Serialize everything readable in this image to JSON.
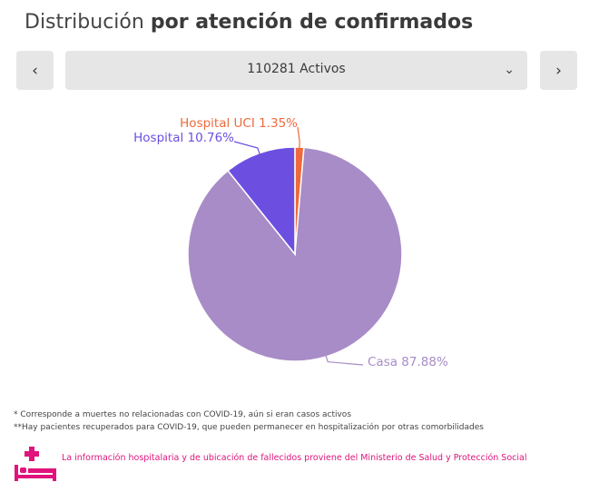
{
  "title": {
    "normal": "Distribución",
    "bold": "por atención de confirmados"
  },
  "nav": {
    "prev_icon": "chevron-left-icon",
    "next_icon": "chevron-right-icon",
    "prev_glyph": "‹",
    "next_glyph": "›",
    "selected": "110281 Activos",
    "dropdown_glyph": "⌄"
  },
  "chart_data": {
    "type": "pie",
    "title": "Distribución por atención de confirmados",
    "subtitle": "110281 Activos",
    "slices": [
      {
        "label": "Hospital UCI",
        "value": 1.35,
        "color": "#ee6a3c",
        "display": "Hospital UCI 1.35%"
      },
      {
        "label": "Casa",
        "value": 87.88,
        "color": "#a88cc7",
        "display": "Casa 87.88%"
      },
      {
        "label": "Hospital",
        "value": 10.76,
        "color": "#6c4fe0",
        "display": "Hospital 10.76%"
      }
    ]
  },
  "notes": {
    "line1": "* Corresponde a muertes no relacionadas con COVID-19, aún si eran casos activos",
    "line2": "**Hay pacientes recuperados para COVID-19, que pueden permanecer en hospitalización por otras comorbilidades"
  },
  "info": {
    "icon": "hospital-bed-icon",
    "text": "La información hospitalaria y de ubicación de fallecidos proviene del Ministerio de Salud y Protección Social",
    "color": "#e0147c"
  }
}
